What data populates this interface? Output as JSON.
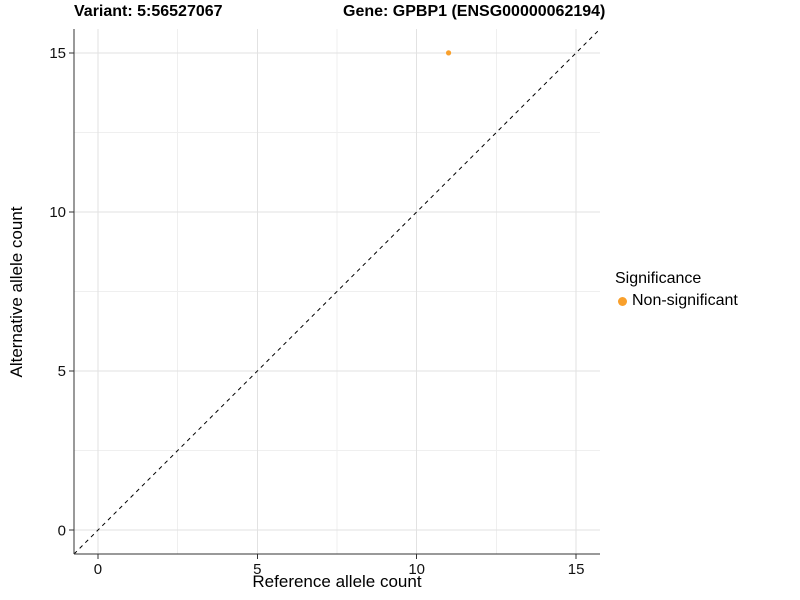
{
  "chart_data": {
    "type": "scatter",
    "title_left": "Variant: 5:56527067",
    "title_right": "Gene: GPBP1 (ENSG00000062194)",
    "xlabel": "Reference allele count",
    "ylabel": "Alternative allele count",
    "xlim": [
      -0.75,
      15.75
    ],
    "ylim": [
      -0.75,
      15.75
    ],
    "x_ticks": [
      0,
      5,
      10,
      15
    ],
    "y_ticks": [
      0,
      5,
      10,
      15
    ],
    "x_minor_ticks": [
      2.5,
      7.5,
      12.5
    ],
    "y_minor_ticks": [
      2.5,
      7.5,
      12.5
    ],
    "grid": "major+minor",
    "legend_position": "right",
    "legend_title": "Significance",
    "series": [
      {
        "name": "Non-significant",
        "color": "#F9A02C",
        "marker": "circle",
        "points": [
          {
            "x": 11,
            "y": 15
          }
        ]
      }
    ],
    "reference_line": {
      "kind": "identity y=x",
      "style": "dashed",
      "color": "#000000"
    }
  },
  "style": {
    "background": "#FFFFFF",
    "grid_major": "#E2E2E2",
    "grid_minor": "#EFEFEF",
    "axis_line": "#333333",
    "tick_color": "#333333",
    "tick_label_color": "#111111",
    "text_color": "#000000"
  }
}
